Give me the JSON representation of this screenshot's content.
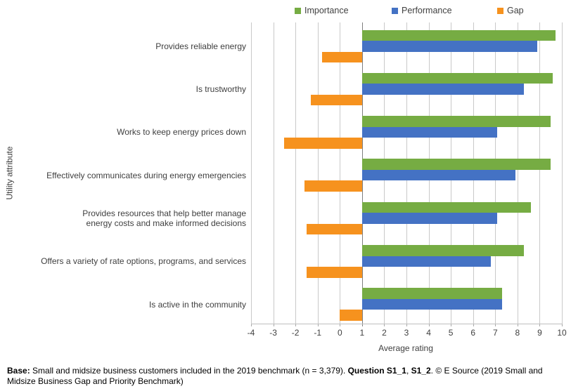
{
  "chart_data": {
    "type": "bar",
    "orientation": "horizontal",
    "title": "",
    "xlabel": "Average rating",
    "ylabel": "Utility attribute",
    "xlim": [
      -4,
      10
    ],
    "xticks": [
      -4,
      -3,
      -2,
      -1,
      0,
      1,
      2,
      3,
      4,
      5,
      6,
      7,
      8,
      9,
      10
    ],
    "bar_baseline": 1,
    "grid": true,
    "legend_position": "top",
    "categories": [
      "Provides reliable energy",
      "Is trustworthy",
      "Works to keep energy prices down",
      "Effectively communicates during energy emergencies",
      "Provides resources that help better manage\nenergy costs and make informed decisions",
      "Offers a variety of rate options, programs, and services",
      "Is active in the community"
    ],
    "series": [
      {
        "name": "Importance",
        "color": "#76AC43",
        "values": [
          9.7,
          9.6,
          9.5,
          9.5,
          8.6,
          8.3,
          7.3
        ]
      },
      {
        "name": "Performance",
        "color": "#4472C4",
        "values": [
          8.9,
          8.3,
          7.1,
          7.9,
          7.1,
          6.8,
          7.3
        ]
      },
      {
        "name": "Gap",
        "color": "#F6921E",
        "values": [
          -0.8,
          -1.3,
          -2.5,
          -1.6,
          -1.5,
          -1.5,
          0.0
        ]
      }
    ]
  },
  "footer": {
    "segments": [
      {
        "text": "Base:",
        "bold": true
      },
      {
        "text": " Small and midsize business customers included in the 2019 benchmark (n = 3,379). ",
        "bold": false
      },
      {
        "text": "Question S1_1",
        "bold": true
      },
      {
        "text": ", ",
        "bold": false
      },
      {
        "text": "S1_2",
        "bold": true
      },
      {
        "text": ". © E Source (2019 Small and Midsize Business Gap and Priority Benchmark)",
        "bold": false
      }
    ]
  }
}
